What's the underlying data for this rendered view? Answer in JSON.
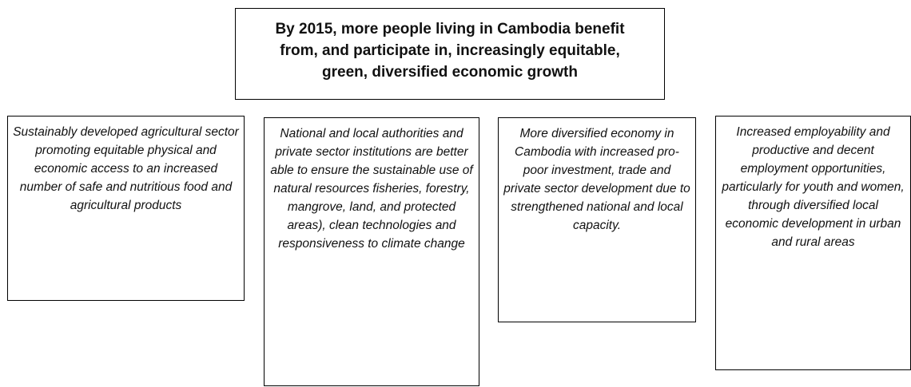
{
  "diagram": {
    "goal": {
      "lines": [
        "By 2015, more people living in Cambodia benefit",
        "from, and participate in, increasingly equitable,",
        "green, diversified economic growth"
      ]
    },
    "outcomes": [
      {
        "text": "Sustainably developed agricultural sector promoting equitable physical and economic access to an increased number of safe and nutritious food and agricultural products"
      },
      {
        "text": "National and local authorities and private sector institutions are better able to ensure the sustainable use of natural resources fisheries, forestry, mangrove, land, and protected areas), clean technologies and responsiveness to climate change"
      },
      {
        "text": "More diversified economy in Cambodia with increased pro-poor investment, trade and private sector development due to strengthened national and local capacity."
      },
      {
        "text": "Increased employability and productive and decent employment opportunities, particularly for youth and women, through diversified local economic development in urban and rural areas"
      }
    ]
  }
}
